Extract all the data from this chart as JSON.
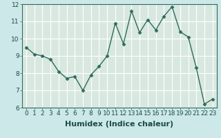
{
  "x": [
    0,
    1,
    2,
    3,
    4,
    5,
    6,
    7,
    8,
    9,
    10,
    11,
    12,
    13,
    14,
    15,
    16,
    17,
    18,
    19,
    20,
    21,
    22,
    23
  ],
  "y": [
    9.5,
    9.1,
    9.0,
    8.8,
    8.1,
    7.7,
    7.8,
    7.0,
    7.9,
    8.4,
    9.0,
    10.9,
    9.7,
    11.6,
    10.35,
    11.1,
    10.5,
    11.3,
    11.85,
    10.4,
    10.1,
    8.3,
    6.2,
    6.5
  ],
  "xlabel": "Humidex (Indice chaleur)",
  "ylim": [
    6,
    12
  ],
  "xlim_min": -0.5,
  "xlim_max": 23.5,
  "yticks": [
    6,
    7,
    8,
    9,
    10,
    11,
    12
  ],
  "xticks": [
    0,
    1,
    2,
    3,
    4,
    5,
    6,
    7,
    8,
    9,
    10,
    11,
    12,
    13,
    14,
    15,
    16,
    17,
    18,
    19,
    20,
    21,
    22,
    23
  ],
  "line_color": "#2e6b5e",
  "marker": "D",
  "marker_size": 2.5,
  "bg_color": "#cde8e8",
  "grid_color": "#ffffff",
  "xlabel_fontsize": 8,
  "tick_fontsize": 6.5
}
